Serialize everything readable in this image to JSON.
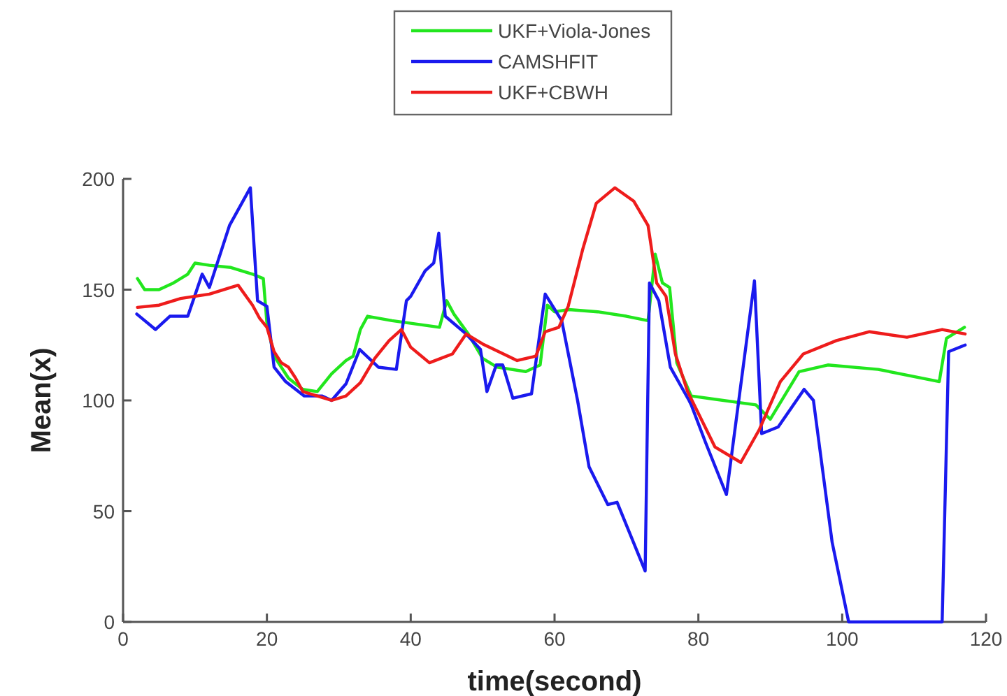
{
  "chart_data": {
    "type": "line",
    "xlabel": "time(second)",
    "ylabel": "Mean(x)",
    "xlim": [
      0,
      120
    ],
    "xticks": [
      0,
      20,
      40,
      60,
      80,
      100,
      120
    ],
    "ylim": [
      0,
      200
    ],
    "yticks": [
      0,
      50,
      100,
      150,
      200
    ],
    "legend": "top",
    "grid": false,
    "marker": "none",
    "line_style": "solid",
    "series": [
      {
        "name": "UKF+Viola-Jones",
        "color": "#22e61e",
        "x": [
          2,
          3,
          5,
          7,
          9,
          10,
          12,
          15,
          18,
          19.5,
          20,
          21,
          23,
          25,
          27,
          29,
          31,
          32,
          33,
          34,
          37.4,
          44,
          45,
          46,
          48,
          50,
          52,
          56,
          58,
          59,
          60,
          62,
          66,
          70,
          73,
          74,
          75,
          76,
          77,
          79,
          88,
          90,
          94,
          98,
          105,
          113.5,
          114.5,
          117
        ],
        "values": [
          155,
          150,
          150,
          153,
          157,
          162,
          161,
          160,
          157,
          155,
          135,
          120,
          110,
          105,
          104,
          112,
          118,
          120,
          132,
          138,
          136,
          133,
          145,
          139,
          130,
          119,
          115,
          113,
          116,
          143,
          140,
          141,
          140,
          138,
          136,
          166,
          153,
          151,
          117,
          102,
          98,
          91.5,
          113,
          116,
          114,
          108.5,
          128,
          133
        ]
      },
      {
        "name": "CAMSHFIT",
        "color": "#1a1aee",
        "x": [
          1.9,
          4.5,
          6.5,
          9,
          11,
          12,
          14.8,
          17.7,
          18.7,
          20,
          21,
          22.6,
          25.2,
          27.7,
          29,
          31,
          32.9,
          35.5,
          38,
          39.4,
          40,
          42,
          43.2,
          43.9,
          44.8,
          47.7,
          49.7,
          50.6,
          51.9,
          52.8,
          54.2,
          56.8,
          58.7,
          61,
          63.2,
          64.8,
          67.4,
          68.7,
          72.6,
          73.2,
          74.5,
          76.1,
          78.7,
          79,
          81,
          83.9,
          87.8,
          88.8,
          91.1,
          94.7,
          96,
          97.3,
          98.6,
          100.9,
          113.9,
          114.8,
          117.1
        ],
        "values": [
          139,
          132,
          138,
          138,
          157,
          151,
          179,
          196,
          145,
          142.5,
          115,
          108.5,
          102,
          102,
          100,
          107.5,
          123,
          115,
          114,
          145,
          147,
          158.5,
          162,
          175.5,
          138,
          130,
          123,
          104,
          116,
          116,
          101,
          103,
          148,
          136,
          100,
          70,
          53,
          54,
          23,
          153,
          145,
          115,
          100,
          98,
          81,
          57.5,
          154,
          85,
          88,
          105,
          100,
          68,
          36,
          0,
          0,
          122,
          125
        ]
      },
      {
        "name": "UKF+CBWH",
        "color": "#ee1c1c",
        "x": [
          2,
          5,
          8,
          12,
          16,
          18,
          19,
          20,
          21,
          22,
          23,
          24,
          25,
          27,
          29,
          31,
          33,
          35,
          37,
          38.7,
          40,
          42.6,
          45.8,
          47.7,
          50,
          54.8,
          57.4,
          58.7,
          60.6,
          61.9,
          63.9,
          65.8,
          68.4,
          71,
          73,
          74.2,
          75.5,
          76.8,
          78.5,
          82.3,
          85.9,
          88.5,
          91.4,
          94.6,
          99.2,
          103.8,
          109,
          113.9,
          117.1
        ],
        "values": [
          142,
          143,
          146,
          148,
          152,
          143,
          137,
          133,
          122,
          117,
          115,
          110,
          104,
          102,
          100,
          102,
          108,
          119,
          127,
          132,
          124,
          117,
          121,
          130,
          125.5,
          118,
          120,
          131,
          133,
          142.5,
          168,
          189,
          196,
          190,
          179,
          153,
          147,
          121,
          104,
          79,
          72,
          87,
          108.5,
          121,
          127,
          131,
          128.5,
          132,
          130
        ]
      }
    ]
  }
}
